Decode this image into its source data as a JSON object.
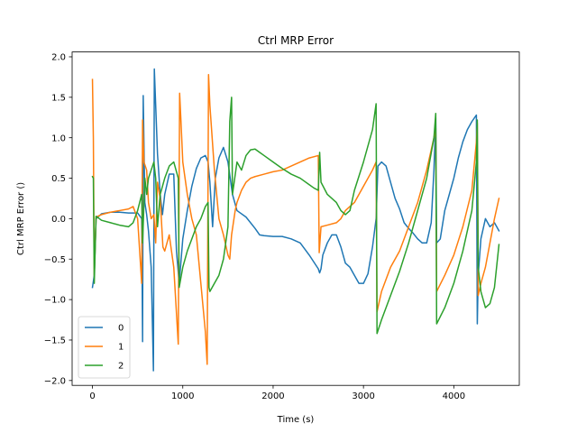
{
  "chart_data": {
    "type": "line",
    "title": "Ctrl MRP Error",
    "xlabel": "Time (s)",
    "ylabel": "Ctrl MRP Error ()",
    "xlim": [
      -225,
      4725
    ],
    "ylim": [
      -2.06,
      2.06
    ],
    "xticks": [
      0,
      1000,
      2000,
      3000,
      4000
    ],
    "yticks": [
      -2.0,
      -1.5,
      -1.0,
      -0.5,
      0.0,
      0.5,
      1.0,
      1.5,
      2.0
    ],
    "xtick_labels": [
      "0",
      "1000",
      "2000",
      "3000",
      "4000"
    ],
    "ytick_labels": [
      "−2.0",
      "−1.5",
      "−1.0",
      "−0.5",
      "0.0",
      "0.5",
      "1.0",
      "1.5",
      "2.0"
    ],
    "grid": false,
    "legend_position": "lower-left",
    "series": [
      {
        "name": "0",
        "color": "#1f77b4",
        "points": [
          [
            0,
            -0.85
          ],
          [
            20,
            -0.7
          ],
          [
            40,
            0.0
          ],
          [
            100,
            0.06
          ],
          [
            200,
            0.08
          ],
          [
            300,
            0.08
          ],
          [
            400,
            0.07
          ],
          [
            500,
            0.07
          ],
          [
            545,
            0.0
          ],
          [
            555,
            -1.52
          ],
          [
            562,
            1.52
          ],
          [
            580,
            0.2
          ],
          [
            600,
            0.05
          ],
          [
            620,
            -0.15
          ],
          [
            650,
            -0.6
          ],
          [
            675,
            -1.88
          ],
          [
            685,
            1.85
          ],
          [
            700,
            1.4
          ],
          [
            720,
            0.8
          ],
          [
            750,
            0.3
          ],
          [
            775,
            0.05
          ],
          [
            800,
            0.3
          ],
          [
            850,
            0.55
          ],
          [
            900,
            0.55
          ],
          [
            930,
            -0.4
          ],
          [
            960,
            -0.8
          ],
          [
            1000,
            -0.25
          ],
          [
            1050,
            0.1
          ],
          [
            1100,
            0.4
          ],
          [
            1150,
            0.62
          ],
          [
            1200,
            0.75
          ],
          [
            1250,
            0.78
          ],
          [
            1280,
            0.7
          ],
          [
            1300,
            0.45
          ],
          [
            1330,
            -0.1
          ],
          [
            1360,
            0.5
          ],
          [
            1400,
            0.75
          ],
          [
            1450,
            0.88
          ],
          [
            1500,
            0.7
          ],
          [
            1550,
            0.3
          ],
          [
            1600,
            0.1
          ],
          [
            1700,
            0.02
          ],
          [
            1800,
            -0.12
          ],
          [
            1850,
            -0.2
          ],
          [
            1900,
            -0.21
          ],
          [
            2000,
            -0.22
          ],
          [
            2100,
            -0.22
          ],
          [
            2200,
            -0.25
          ],
          [
            2300,
            -0.3
          ],
          [
            2400,
            -0.45
          ],
          [
            2500,
            -0.62
          ],
          [
            2515,
            -0.67
          ],
          [
            2530,
            -0.62
          ],
          [
            2550,
            -0.45
          ],
          [
            2600,
            -0.3
          ],
          [
            2650,
            -0.2
          ],
          [
            2700,
            -0.2
          ],
          [
            2750,
            -0.35
          ],
          [
            2800,
            -0.55
          ],
          [
            2850,
            -0.6
          ],
          [
            2900,
            -0.7
          ],
          [
            2950,
            -0.8
          ],
          [
            3000,
            -0.8
          ],
          [
            3050,
            -0.68
          ],
          [
            3100,
            -0.35
          ],
          [
            3140,
            0.0
          ],
          [
            3160,
            0.65
          ],
          [
            3200,
            0.7
          ],
          [
            3250,
            0.65
          ],
          [
            3300,
            0.45
          ],
          [
            3350,
            0.25
          ],
          [
            3400,
            0.12
          ],
          [
            3450,
            -0.05
          ],
          [
            3500,
            -0.12
          ],
          [
            3550,
            -0.18
          ],
          [
            3600,
            -0.25
          ],
          [
            3650,
            -0.3
          ],
          [
            3700,
            -0.3
          ],
          [
            3750,
            -0.05
          ],
          [
            3780,
            0.6
          ],
          [
            3800,
            1.25
          ],
          [
            3810,
            -0.3
          ],
          [
            3850,
            -0.25
          ],
          [
            3900,
            0.1
          ],
          [
            3950,
            0.3
          ],
          [
            4000,
            0.5
          ],
          [
            4050,
            0.75
          ],
          [
            4100,
            0.95
          ],
          [
            4150,
            1.1
          ],
          [
            4200,
            1.2
          ],
          [
            4250,
            1.28
          ],
          [
            4260,
            -1.3
          ],
          [
            4270,
            -0.7
          ],
          [
            4300,
            -0.25
          ],
          [
            4350,
            0.0
          ],
          [
            4400,
            -0.1
          ],
          [
            4450,
            -0.05
          ],
          [
            4500,
            -0.15
          ]
        ]
      },
      {
        "name": "1",
        "color": "#ff7f0e",
        "points": [
          [
            0,
            1.72
          ],
          [
            10,
            1.0
          ],
          [
            20,
            -0.7
          ],
          [
            40,
            0.02
          ],
          [
            100,
            0.05
          ],
          [
            200,
            0.08
          ],
          [
            300,
            0.1
          ],
          [
            400,
            0.12
          ],
          [
            450,
            0.15
          ],
          [
            500,
            0.0
          ],
          [
            545,
            -0.8
          ],
          [
            555,
            1.22
          ],
          [
            570,
            0.7
          ],
          [
            600,
            0.6
          ],
          [
            620,
            0.2
          ],
          [
            650,
            0.0
          ],
          [
            680,
            0.05
          ],
          [
            700,
            -0.3
          ],
          [
            720,
            0.45
          ],
          [
            750,
            0.25
          ],
          [
            780,
            -0.35
          ],
          [
            800,
            -0.4
          ],
          [
            850,
            -0.2
          ],
          [
            900,
            -0.6
          ],
          [
            950,
            -1.55
          ],
          [
            965,
            1.55
          ],
          [
            980,
            1.2
          ],
          [
            1000,
            0.7
          ],
          [
            1050,
            0.3
          ],
          [
            1100,
            0.0
          ],
          [
            1150,
            -0.2
          ],
          [
            1200,
            -0.8
          ],
          [
            1250,
            -1.4
          ],
          [
            1270,
            -1.8
          ],
          [
            1285,
            1.78
          ],
          [
            1300,
            1.4
          ],
          [
            1350,
            0.6
          ],
          [
            1400,
            0.0
          ],
          [
            1450,
            -0.2
          ],
          [
            1500,
            -0.45
          ],
          [
            1520,
            -0.5
          ],
          [
            1540,
            -0.2
          ],
          [
            1580,
            0.1
          ],
          [
            1600,
            0.2
          ],
          [
            1650,
            0.35
          ],
          [
            1700,
            0.45
          ],
          [
            1750,
            0.5
          ],
          [
            1800,
            0.52
          ],
          [
            1900,
            0.55
          ],
          [
            2000,
            0.58
          ],
          [
            2100,
            0.6
          ],
          [
            2200,
            0.65
          ],
          [
            2300,
            0.7
          ],
          [
            2400,
            0.75
          ],
          [
            2500,
            0.78
          ],
          [
            2510,
            -0.42
          ],
          [
            2530,
            -0.1
          ],
          [
            2600,
            -0.08
          ],
          [
            2700,
            -0.05
          ],
          [
            2750,
            0.0
          ],
          [
            2800,
            0.1
          ],
          [
            2900,
            0.2
          ],
          [
            3000,
            0.4
          ],
          [
            3100,
            0.6
          ],
          [
            3140,
            0.7
          ],
          [
            3150,
            -1.15
          ],
          [
            3200,
            -0.9
          ],
          [
            3300,
            -0.6
          ],
          [
            3400,
            -0.4
          ],
          [
            3500,
            -0.1
          ],
          [
            3600,
            0.2
          ],
          [
            3700,
            0.6
          ],
          [
            3780,
            1.0
          ],
          [
            3800,
            1.12
          ],
          [
            3810,
            -0.9
          ],
          [
            3900,
            -0.7
          ],
          [
            4000,
            -0.45
          ],
          [
            4100,
            -0.1
          ],
          [
            4200,
            0.35
          ],
          [
            4250,
            0.95
          ],
          [
            4260,
            1.18
          ],
          [
            4270,
            -0.95
          ],
          [
            4300,
            -0.8
          ],
          [
            4350,
            -0.6
          ],
          [
            4400,
            -0.3
          ],
          [
            4450,
            0.0
          ],
          [
            4500,
            0.25
          ]
        ]
      },
      {
        "name": "2",
        "color": "#2ca02c",
        "points": [
          [
            0,
            0.52
          ],
          [
            10,
            0.5
          ],
          [
            20,
            -0.8
          ],
          [
            40,
            0.03
          ],
          [
            100,
            -0.02
          ],
          [
            200,
            -0.05
          ],
          [
            300,
            -0.08
          ],
          [
            400,
            -0.1
          ],
          [
            450,
            -0.05
          ],
          [
            500,
            0.1
          ],
          [
            545,
            0.3
          ],
          [
            555,
            -0.3
          ],
          [
            580,
            0.5
          ],
          [
            600,
            0.3
          ],
          [
            620,
            0.5
          ],
          [
            650,
            0.6
          ],
          [
            680,
            0.7
          ],
          [
            700,
            0.5
          ],
          [
            720,
            -0.1
          ],
          [
            750,
            0.3
          ],
          [
            800,
            0.5
          ],
          [
            850,
            0.65
          ],
          [
            900,
            0.7
          ],
          [
            950,
            0.5
          ],
          [
            960,
            -0.85
          ],
          [
            1000,
            -0.6
          ],
          [
            1050,
            -0.4
          ],
          [
            1100,
            -0.25
          ],
          [
            1150,
            -0.1
          ],
          [
            1200,
            0.0
          ],
          [
            1250,
            0.15
          ],
          [
            1280,
            0.2
          ],
          [
            1290,
            -0.85
          ],
          [
            1300,
            -0.9
          ],
          [
            1350,
            -0.8
          ],
          [
            1400,
            -0.7
          ],
          [
            1450,
            -0.5
          ],
          [
            1500,
            -0.1
          ],
          [
            1520,
            1.2
          ],
          [
            1540,
            1.5
          ],
          [
            1550,
            0.3
          ],
          [
            1600,
            0.7
          ],
          [
            1650,
            0.6
          ],
          [
            1700,
            0.78
          ],
          [
            1750,
            0.85
          ],
          [
            1800,
            0.86
          ],
          [
            1850,
            0.82
          ],
          [
            1900,
            0.78
          ],
          [
            2000,
            0.7
          ],
          [
            2100,
            0.62
          ],
          [
            2200,
            0.55
          ],
          [
            2300,
            0.5
          ],
          [
            2400,
            0.42
          ],
          [
            2450,
            0.38
          ],
          [
            2500,
            0.35
          ],
          [
            2515,
            0.82
          ],
          [
            2530,
            0.45
          ],
          [
            2600,
            0.3
          ],
          [
            2700,
            0.2
          ],
          [
            2750,
            0.1
          ],
          [
            2800,
            0.05
          ],
          [
            2850,
            0.1
          ],
          [
            2900,
            0.35
          ],
          [
            3000,
            0.7
          ],
          [
            3100,
            1.1
          ],
          [
            3140,
            1.42
          ],
          [
            3150,
            -1.42
          ],
          [
            3200,
            -1.25
          ],
          [
            3300,
            -0.95
          ],
          [
            3400,
            -0.65
          ],
          [
            3500,
            -0.3
          ],
          [
            3600,
            0.1
          ],
          [
            3700,
            0.5
          ],
          [
            3780,
            1.0
          ],
          [
            3800,
            1.3
          ],
          [
            3810,
            -1.3
          ],
          [
            3900,
            -1.1
          ],
          [
            4000,
            -0.8
          ],
          [
            4100,
            -0.4
          ],
          [
            4200,
            0.1
          ],
          [
            4250,
            0.7
          ],
          [
            4260,
            1.22
          ],
          [
            4270,
            -0.6
          ],
          [
            4300,
            -0.9
          ],
          [
            4350,
            -1.1
          ],
          [
            4400,
            -1.05
          ],
          [
            4450,
            -0.85
          ],
          [
            4500,
            -0.32
          ]
        ]
      }
    ]
  }
}
